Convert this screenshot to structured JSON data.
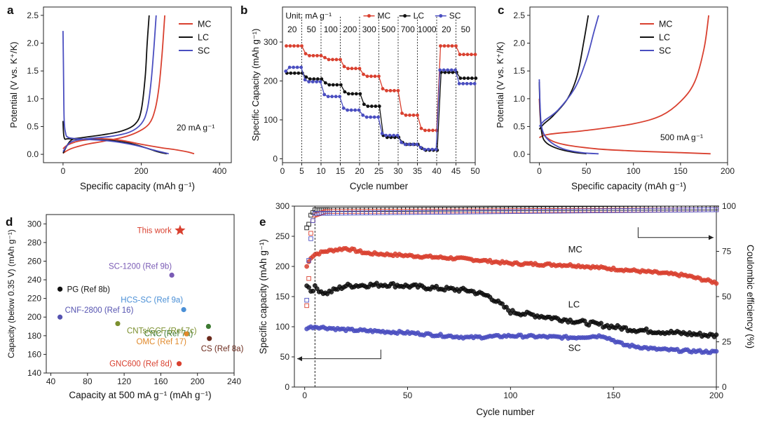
{
  "colors": {
    "mc": "#d9402f",
    "lc": "#111111",
    "sc": "#4a4ec0",
    "axis": "#222222"
  },
  "chart_data": [
    {
      "panel": "a",
      "type": "line",
      "xlabel": "Specific capacity (mAh g⁻¹)",
      "ylabel": "Potential (V vs. K⁺/K)",
      "xlim": [
        -50,
        430
      ],
      "ylim": [
        -0.15,
        2.65
      ],
      "xticks": [
        0,
        200,
        400
      ],
      "yticks": [
        0.0,
        0.5,
        1.0,
        1.5,
        2.0,
        2.5
      ],
      "annotation": "20 mA g⁻¹",
      "legend": [
        "MC",
        "LC",
        "SC"
      ],
      "legend_position": "top-right",
      "series": [
        {
          "name": "MC",
          "curves": [
            [
              [
                0,
                0.1
              ],
              [
                10,
                0.16
              ],
              [
                30,
                0.22
              ],
              [
                60,
                0.26
              ],
              [
                100,
                0.28
              ],
              [
                150,
                0.25
              ],
              [
                200,
                0.18
              ],
              [
                250,
                0.12
              ],
              [
                290,
                0.08
              ],
              [
                320,
                0.04
              ],
              [
                335,
                0.01
              ]
            ],
            [
              [
                0,
                0.02
              ],
              [
                20,
                0.1
              ],
              [
                60,
                0.18
              ],
              [
                100,
                0.23
              ],
              [
                150,
                0.3
              ],
              [
                190,
                0.4
              ],
              [
                220,
                0.55
              ],
              [
                235,
                0.8
              ],
              [
                245,
                1.2
              ],
              [
                253,
                1.8
              ],
              [
                260,
                2.5
              ]
            ]
          ]
        },
        {
          "name": "LC",
          "curves": [
            [
              [
                0,
                0.6
              ],
              [
                3,
                0.3
              ],
              [
                15,
                0.28
              ],
              [
                60,
                0.27
              ],
              [
                120,
                0.25
              ],
              [
                170,
                0.2
              ],
              [
                210,
                0.12
              ],
              [
                240,
                0.05
              ],
              [
                265,
                0.01
              ]
            ],
            [
              [
                0,
                0.02
              ],
              [
                20,
                0.25
              ],
              [
                50,
                0.3
              ],
              [
                100,
                0.35
              ],
              [
                150,
                0.42
              ],
              [
                185,
                0.55
              ],
              [
                200,
                0.8
              ],
              [
                210,
                1.4
              ],
              [
                215,
                2.0
              ],
              [
                220,
                2.5
              ]
            ]
          ]
        },
        {
          "name": "SC",
          "curves": [
            [
              [
                0,
                2.22
              ],
              [
                1,
                1.6
              ],
              [
                2,
                1.0
              ],
              [
                3,
                0.6
              ],
              [
                6,
                0.4
              ],
              [
                15,
                0.3
              ],
              [
                60,
                0.27
              ],
              [
                120,
                0.24
              ],
              [
                180,
                0.17
              ],
              [
                230,
                0.08
              ],
              [
                270,
                0.01
              ]
            ],
            [
              [
                0,
                0.05
              ],
              [
                20,
                0.22
              ],
              [
                60,
                0.28
              ],
              [
                120,
                0.32
              ],
              [
                170,
                0.4
              ],
              [
                200,
                0.55
              ],
              [
                215,
                0.8
              ],
              [
                225,
                1.3
              ],
              [
                232,
                1.9
              ],
              [
                238,
                2.5
              ]
            ]
          ]
        }
      ]
    },
    {
      "panel": "b",
      "type": "scatter",
      "xlabel": "Cycle number",
      "ylabel": "Specific Capacity (mAh g⁻¹)",
      "xlim": [
        0,
        50
      ],
      "ylim": [
        -10,
        390
      ],
      "xticks": [
        0,
        5,
        10,
        15,
        20,
        25,
        30,
        35,
        40,
        45,
        50
      ],
      "yticks": [
        0,
        100,
        200,
        300
      ],
      "unit_label": "Unit: mA g⁻¹",
      "rate_labels": [
        "20",
        "50",
        "100",
        "200",
        "300",
        "500",
        "700",
        "1000",
        "20",
        "50"
      ],
      "segment_boundaries": [
        5,
        10,
        15,
        20,
        25,
        30,
        35,
        40,
        45
      ],
      "legend": [
        "MC",
        "LC",
        "SC"
      ],
      "legend_position": "top-right",
      "series": [
        {
          "name": "MC",
          "segment_values": [
            290,
            265,
            255,
            232,
            212,
            175,
            112,
            73,
            290,
            268
          ]
        },
        {
          "name": "LC",
          "segment_values": [
            220,
            205,
            190,
            167,
            135,
            55,
            37,
            22,
            222,
            207
          ]
        },
        {
          "name": "SC",
          "segment_values": [
            235,
            198,
            160,
            125,
            107,
            60,
            37,
            24,
            228,
            193
          ]
        }
      ]
    },
    {
      "panel": "c",
      "type": "line",
      "xlabel": "Specific capacity (mAh g⁻¹)",
      "ylabel": "Potential (V vs. K⁺/K)",
      "xlim": [
        -10,
        200
      ],
      "ylim": [
        -0.15,
        2.65
      ],
      "xticks": [
        0,
        50,
        100,
        150,
        200
      ],
      "yticks": [
        0.0,
        0.5,
        1.0,
        1.5,
        2.0,
        2.5
      ],
      "annotation": "500 mA g⁻¹",
      "legend": [
        "MC",
        "LC",
        "SC"
      ],
      "legend_position": "top-right",
      "series": [
        {
          "name": "MC",
          "curves": [
            [
              [
                0,
                1.0
              ],
              [
                2,
                0.5
              ],
              [
                8,
                0.3
              ],
              [
                25,
                0.18
              ],
              [
                60,
                0.1
              ],
              [
                100,
                0.06
              ],
              [
                150,
                0.03
              ],
              [
                182,
                0.01
              ]
            ],
            [
              [
                0,
                0.3
              ],
              [
                10,
                0.36
              ],
              [
                50,
                0.43
              ],
              [
                100,
                0.55
              ],
              [
                130,
                0.7
              ],
              [
                150,
                0.95
              ],
              [
                165,
                1.3
              ],
              [
                175,
                1.9
              ],
              [
                180,
                2.5
              ]
            ]
          ]
        },
        {
          "name": "LC",
          "curves": [
            [
              [
                0,
                1.3
              ],
              [
                1,
                0.7
              ],
              [
                3,
                0.35
              ],
              [
                8,
                0.2
              ],
              [
                20,
                0.1
              ],
              [
                35,
                0.04
              ],
              [
                50,
                0.01
              ]
            ],
            [
              [
                0,
                0.45
              ],
              [
                5,
                0.55
              ],
              [
                15,
                0.7
              ],
              [
                30,
                1.0
              ],
              [
                40,
                1.4
              ],
              [
                47,
                2.0
              ],
              [
                52,
                2.5
              ]
            ]
          ]
        },
        {
          "name": "SC",
          "curves": [
            [
              [
                0,
                1.35
              ],
              [
                1,
                0.8
              ],
              [
                3,
                0.45
              ],
              [
                10,
                0.25
              ],
              [
                25,
                0.1
              ],
              [
                45,
                0.03
              ],
              [
                63,
                0.01
              ]
            ],
            [
              [
                0,
                0.5
              ],
              [
                5,
                0.6
              ],
              [
                20,
                0.8
              ],
              [
                38,
                1.2
              ],
              [
                50,
                1.7
              ],
              [
                58,
                2.2
              ],
              [
                63,
                2.5
              ]
            ]
          ]
        }
      ]
    },
    {
      "panel": "d",
      "type": "scatter",
      "xlabel": "Capacity at 500 mA g⁻¹ (mAh g⁻¹)",
      "ylabel": "Capacity (below 0.35 V) (mAh g⁻¹)",
      "xlim": [
        35,
        240
      ],
      "ylim": [
        140,
        310
      ],
      "xticks": [
        40,
        80,
        120,
        160,
        200,
        240
      ],
      "yticks": [
        140,
        160,
        180,
        200,
        220,
        240,
        260,
        280,
        300
      ],
      "points": [
        {
          "label": "This work",
          "x": 181,
          "y": 293,
          "color": "#d9402f",
          "marker": "star"
        },
        {
          "label": "SC-1200 (Ref 9b)",
          "x": 172,
          "y": 245,
          "color": "#7a5bb5",
          "marker": "circle"
        },
        {
          "label": "PG (Ref 8b)",
          "x": 50,
          "y": 230,
          "color": "#111111",
          "marker": "circle"
        },
        {
          "label": "HCS-SC (Ref 9a)",
          "x": 185,
          "y": 208,
          "color": "#4a8fd6",
          "marker": "circle"
        },
        {
          "label": "CNF-2800 (Ref 16)",
          "x": 50,
          "y": 200,
          "color": "#5553b0",
          "marker": "circle"
        },
        {
          "label": "CNC (Ref 7a)",
          "x": 212,
          "y": 190,
          "color": "#3d7a32",
          "marker": "circle"
        },
        {
          "label": "CNTs/GCF (Ref 7c)",
          "x": 113,
          "y": 193,
          "color": "#7b8f2e",
          "marker": "circle"
        },
        {
          "label": "OMC (Ref 17)",
          "x": 188,
          "y": 182,
          "color": "#e0892b",
          "marker": "circle"
        },
        {
          "label": "CS (Ref 8a)",
          "x": 213,
          "y": 177,
          "color": "#6b2a1c",
          "marker": "circle"
        },
        {
          "label": "GNC600 (Ref 8d)",
          "x": 180,
          "y": 150,
          "color": "#d9402f",
          "marker": "circle"
        }
      ]
    },
    {
      "panel": "e",
      "type": "scatter",
      "xlabel": "Cycle number",
      "ylabel": "Specific capacity (mAh g⁻¹)",
      "ylabel_right": "Coulombic efficiency (%)",
      "xlim": [
        -5,
        200
      ],
      "ylim": [
        0,
        300
      ],
      "ylim_right": [
        0,
        100
      ],
      "xticks": [
        0,
        50,
        100,
        150,
        200
      ],
      "yticks": [
        0,
        50,
        100,
        150,
        200,
        250,
        300
      ],
      "yticks_right": [
        0,
        25,
        50,
        75,
        100
      ],
      "series_labels": [
        "MC",
        "LC",
        "SC"
      ],
      "capacity_anchor_points": {
        "MC": [
          [
            1,
            200
          ],
          [
            3,
            215
          ],
          [
            5,
            220
          ],
          [
            10,
            225
          ],
          [
            20,
            230
          ],
          [
            30,
            222
          ],
          [
            50,
            218
          ],
          [
            80,
            212
          ],
          [
            100,
            205
          ],
          [
            130,
            202
          ],
          [
            150,
            196
          ],
          [
            170,
            190
          ],
          [
            185,
            185
          ],
          [
            200,
            173
          ]
        ],
        "LC": [
          [
            1,
            170
          ],
          [
            3,
            160
          ],
          [
            5,
            165
          ],
          [
            10,
            155
          ],
          [
            20,
            168
          ],
          [
            40,
            170
          ],
          [
            60,
            165
          ],
          [
            80,
            160
          ],
          [
            90,
            150
          ],
          [
            100,
            125
          ],
          [
            120,
            115
          ],
          [
            140,
            105
          ],
          [
            160,
            95
          ],
          [
            180,
            90
          ],
          [
            200,
            85
          ]
        ],
        "SC": [
          [
            1,
            98
          ],
          [
            5,
            100
          ],
          [
            20,
            95
          ],
          [
            50,
            90
          ],
          [
            80,
            82
          ],
          [
            100,
            85
          ],
          [
            130,
            82
          ],
          [
            145,
            85
          ],
          [
            155,
            70
          ],
          [
            170,
            63
          ],
          [
            185,
            60
          ],
          [
            200,
            58
          ]
        ]
      },
      "efficiency_percent": {
        "MC": [
          [
            1,
            45
          ],
          [
            2,
            60
          ],
          [
            3,
            85
          ],
          [
            4,
            92
          ],
          [
            5,
            95
          ],
          [
            10,
            97
          ],
          [
            200,
            98
          ]
        ],
        "LC": [
          [
            1,
            88
          ],
          [
            2,
            90
          ],
          [
            3,
            95
          ],
          [
            5,
            98
          ],
          [
            200,
            99
          ]
        ],
        "SC": [
          [
            1,
            48
          ],
          [
            2,
            70
          ],
          [
            3,
            82
          ],
          [
            4,
            92
          ],
          [
            5,
            96
          ],
          [
            200,
            98
          ]
        ]
      }
    }
  ],
  "panel_letters": [
    "a",
    "b",
    "c",
    "d",
    "e"
  ]
}
